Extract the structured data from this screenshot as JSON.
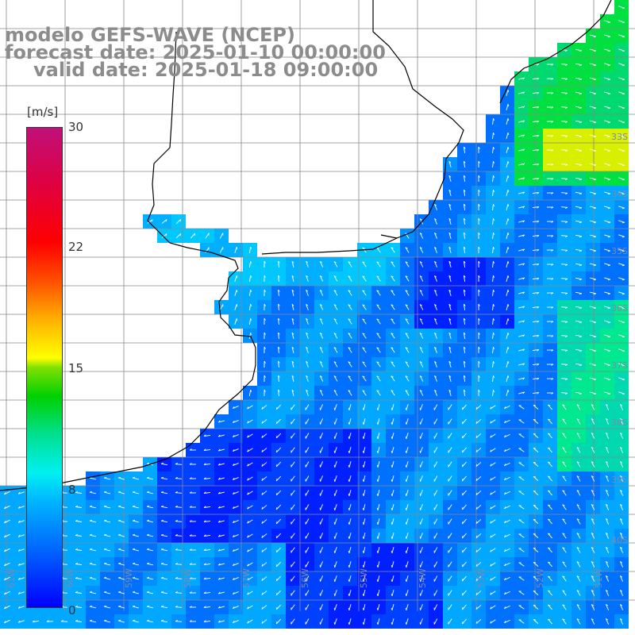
{
  "title": {
    "line1": "modelo GEFS-WAVE (NCEP)",
    "line2": "forecast date: 2025-01-10 00:00:00",
    "line3": "valid date: 2025-01-18 09:00:00"
  },
  "colorbar": {
    "unit": "[m/s]",
    "ticks": [
      "30",
      "22",
      "15",
      "8",
      "0"
    ],
    "colors": [
      "#0000ff",
      "#00b4ff",
      "#00f0f0",
      "#00d000",
      "#ffff00",
      "#ff0000",
      "#c0107a"
    ]
  },
  "grid": {
    "lon_labels": [
      "61W",
      "60W",
      "59W",
      "58W",
      "57W",
      "56W",
      "55W",
      "54W",
      "53W",
      "52W",
      "51W"
    ],
    "lat_labels": [
      "33S",
      "34S",
      "35S",
      "36S",
      "37S",
      "38S",
      "39S",
      "40S"
    ]
  },
  "field_colors": {
    "land": "#ffffff",
    "coast": "#000000",
    "grid_line": "#888888",
    "arrow": "#ffffff"
  }
}
